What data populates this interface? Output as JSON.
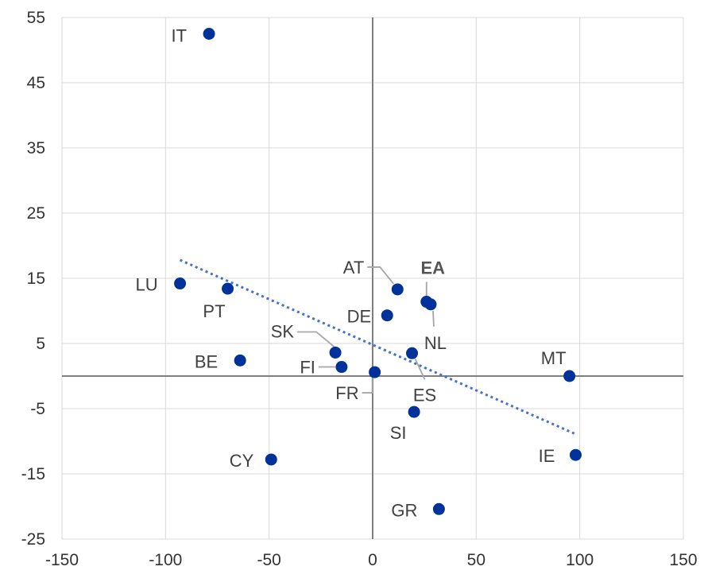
{
  "chart_data": {
    "type": "scatter",
    "xlim": [
      -150,
      150
    ],
    "ylim": [
      -25,
      55
    ],
    "x_ticks": [
      -150,
      -100,
      -50,
      0,
      50,
      100,
      150
    ],
    "y_ticks": [
      55,
      45,
      35,
      25,
      15,
      5,
      -5,
      -15,
      -25
    ],
    "x_tick_labels": [
      "-150",
      "-100",
      "-50",
      "0",
      "50",
      "100",
      "150"
    ],
    "y_tick_labels": [
      "55",
      "45",
      "35",
      "25",
      "15",
      "5",
      "-5",
      "-15",
      "-25"
    ],
    "grid": true,
    "series": [
      {
        "color": "#003299",
        "points": [
          {
            "label": "IT",
            "x": -79,
            "y": 52.5
          },
          {
            "label": "LU",
            "x": -93,
            "y": 14.2
          },
          {
            "label": "PT",
            "x": -70,
            "y": 13.4
          },
          {
            "label": "BE",
            "x": -64,
            "y": 2.4
          },
          {
            "label": "CY",
            "x": -49,
            "y": -12.8
          },
          {
            "label": "SK",
            "x": -18,
            "y": 3.6
          },
          {
            "label": "FI",
            "x": -15,
            "y": 1.4
          },
          {
            "label": "FR",
            "x": 1,
            "y": 0.6
          },
          {
            "label": "AT",
            "x": 12,
            "y": 13.3
          },
          {
            "label": "DE",
            "x": 7,
            "y": 9.3
          },
          {
            "label": "EA",
            "x": 26,
            "y": 11.4,
            "bold": true
          },
          {
            "label": "NL",
            "x": 28,
            "y": 11.0
          },
          {
            "label": "ES",
            "x": 19,
            "y": 3.5
          },
          {
            "label": "SI",
            "x": 20,
            "y": -5.5
          },
          {
            "label": "MT",
            "x": 95,
            "y": 0.0
          },
          {
            "label": "IE",
            "x": 98,
            "y": -12.1
          },
          {
            "label": "GR",
            "x": 32,
            "y": -20.4
          }
        ]
      }
    ],
    "trendline": {
      "style": "dotted",
      "color": "#4472C4",
      "x": [
        -93,
        98
      ],
      "y": [
        17.8,
        -8.9
      ]
    }
  }
}
